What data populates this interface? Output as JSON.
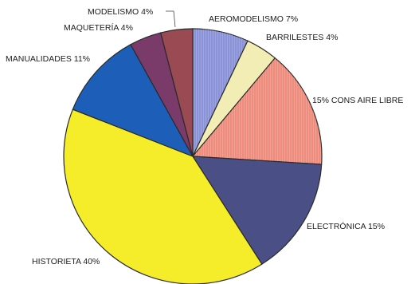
{
  "chart_data": {
    "type": "pie",
    "title": "",
    "start": "12 o'clock",
    "direction": "clockwise",
    "slices": [
      {
        "label": "AEROMODELISMO 7%",
        "value": 7,
        "color": "#8b93d8",
        "icon": "hatched"
      },
      {
        "label": "BARRILESTES 4%",
        "value": 4,
        "color": "#f2edb5"
      },
      {
        "label": "15% CONS AIRE LIBRE",
        "value": 15,
        "color": "#ee8c7e",
        "icon": "hatched"
      },
      {
        "label": "ELECTRÓNICA 15%",
        "value": 15,
        "color": "#4a4f86"
      },
      {
        "label": "HISTORIETA 40%",
        "value": 40,
        "color": "#f5ec2a"
      },
      {
        "label": "MANUALIDADES 11%",
        "value": 11,
        "color": "#1d5fb8"
      },
      {
        "label": "MAQUETERÍA 4%",
        "value": 4,
        "color": "#7a3a6a"
      },
      {
        "label": "MODELISMO 4%",
        "value": 4,
        "color": "#9a4a52"
      }
    ]
  }
}
